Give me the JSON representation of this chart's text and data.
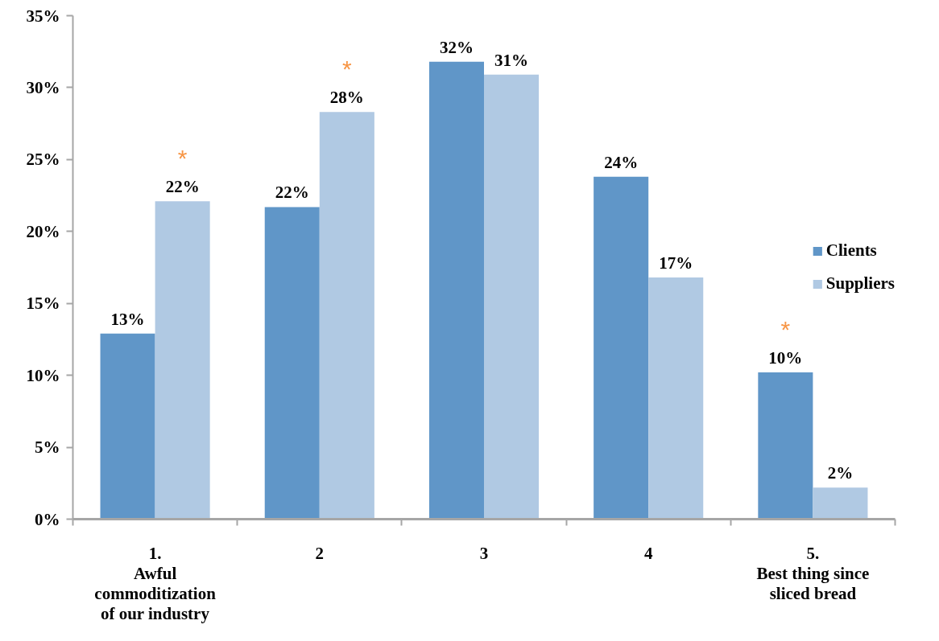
{
  "chart_data": {
    "type": "bar",
    "categories": [
      "1.\nAwful\ncommoditization\nof our industry",
      "2",
      "3",
      "4",
      "5.\nBest thing since\nsliced bread"
    ],
    "series": [
      {
        "name": "Clients",
        "color": "#6096c8",
        "values": [
          12.9,
          21.7,
          31.8,
          23.8,
          10.2
        ],
        "value_labels": [
          "13%",
          "22%",
          "32%",
          "24%",
          "10%"
        ]
      },
      {
        "name": "Suppliers",
        "color": "#b0c9e3",
        "values": [
          22.1,
          28.3,
          30.9,
          16.8,
          2.2
        ],
        "value_labels": [
          "22%",
          "28%",
          "31%",
          "17%",
          "2%"
        ]
      }
    ],
    "ylim": [
      0,
      35
    ],
    "yticks": [
      {
        "value": 0,
        "label": "0%"
      },
      {
        "value": 5,
        "label": "5%"
      },
      {
        "value": 10,
        "label": "10%"
      },
      {
        "value": 15,
        "label": "15%"
      },
      {
        "value": 20,
        "label": "20%"
      },
      {
        "value": 25,
        "label": "25%"
      },
      {
        "value": 30,
        "label": "30%"
      },
      {
        "value": 35,
        "label": "35%"
      }
    ],
    "annotations": [
      {
        "text": "*",
        "x": "1.\nAwful\ncommoditization\nof our industry",
        "y": 22.1
      },
      {
        "text": "*",
        "x": "2",
        "y": 28.3
      },
      {
        "text": "*",
        "x": "5.\nBest thing since\nsliced bread",
        "y": 10.2
      }
    ],
    "legend": "right",
    "grid": false
  }
}
